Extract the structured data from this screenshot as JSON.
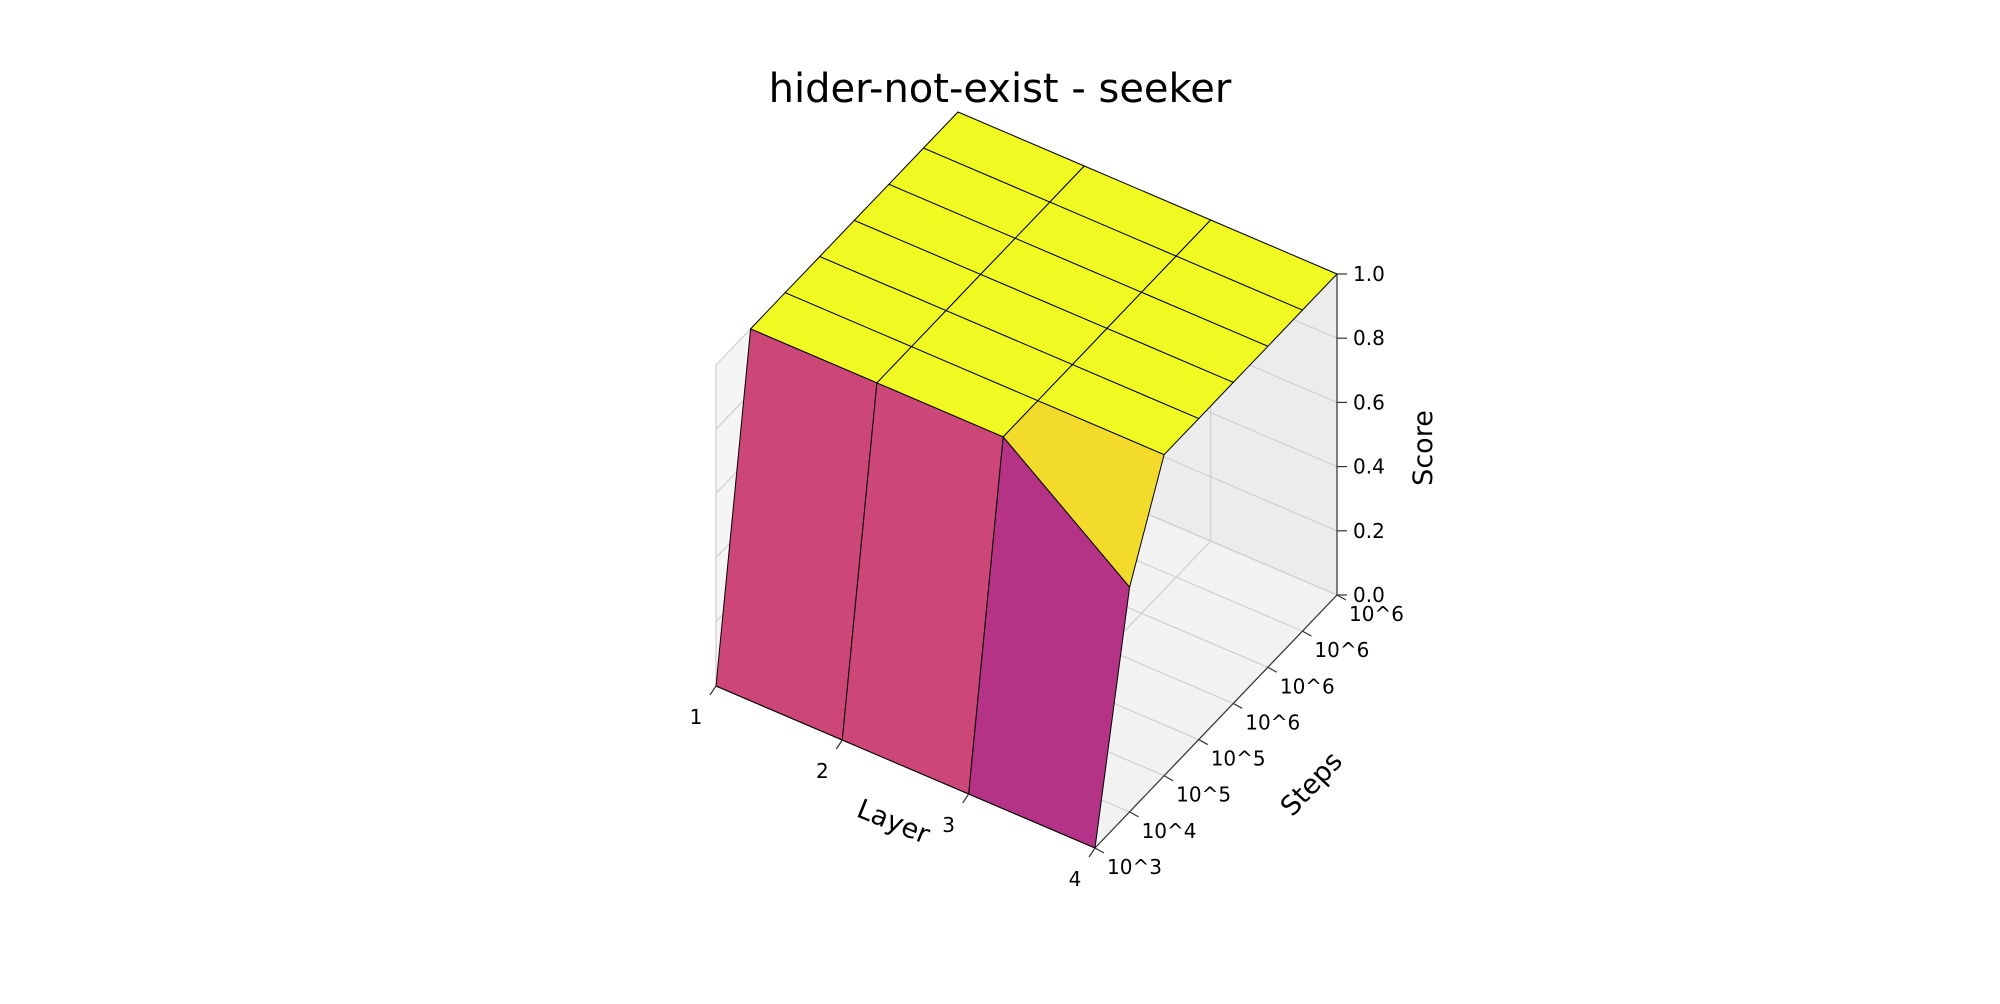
{
  "chart_data": {
    "type": "surface3d",
    "title": "hider-not-exist - seeker",
    "xlabel": "Layer",
    "ylabel": "Steps",
    "zlabel": "Score",
    "x_ticks": [
      "1",
      "2",
      "3",
      "4"
    ],
    "y_ticks": [
      "10^3",
      "10^4",
      "10^5",
      "10^5",
      "10^6",
      "10^6",
      "10^6",
      "10^6"
    ],
    "z_ticks": [
      "0.0",
      "0.2",
      "0.4",
      "0.6",
      "0.8",
      "1.0"
    ],
    "zlim": [
      0,
      1
    ],
    "colormap": "plasma",
    "grid": true,
    "values": [
      [
        0.0,
        0.0,
        0.0,
        0.0
      ],
      [
        1.0,
        1.0,
        1.0,
        0.7
      ],
      [
        1.0,
        1.0,
        1.0,
        1.0
      ],
      [
        1.0,
        1.0,
        1.0,
        1.0
      ],
      [
        1.0,
        1.0,
        1.0,
        1.0
      ],
      [
        1.0,
        1.0,
        1.0,
        1.0
      ],
      [
        1.0,
        1.0,
        1.0,
        1.0
      ],
      [
        1.0,
        1.0,
        1.0,
        1.0
      ]
    ]
  }
}
